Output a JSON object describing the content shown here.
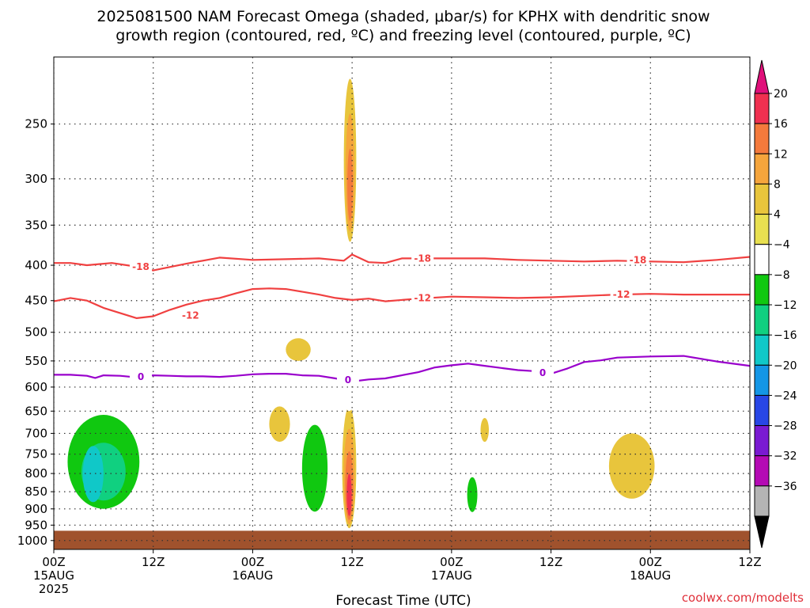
{
  "colors": {
    "ground": "#a0522d",
    "dgz_contour": "#f04040",
    "freezing_contour": "#9900cc",
    "grid": "#888888",
    "credit": "#e0303a"
  },
  "chart_data": {
    "type": "contour",
    "title_lines": [
      "2025081500 NAM Forecast Omega (shaded, μbar/s) for KPHX with dendritic snow",
      "growth region (contoured, red, ºC) and freezing level (contoured, purple, ºC)"
    ],
    "xlabel": "Forecast Time (UTC)",
    "x_range_hours": [
      0,
      84
    ],
    "x_ticks": [
      {
        "hour": 0,
        "label": "00Z",
        "sub": "15AUG",
        "sub2": "2025"
      },
      {
        "hour": 12,
        "label": "12Z",
        "sub": "",
        "sub2": ""
      },
      {
        "hour": 24,
        "label": "00Z",
        "sub": "16AUG",
        "sub2": ""
      },
      {
        "hour": 36,
        "label": "12Z",
        "sub": "",
        "sub2": ""
      },
      {
        "hour": 48,
        "label": "00Z",
        "sub": "17AUG",
        "sub2": ""
      },
      {
        "hour": 60,
        "label": "12Z",
        "sub": "",
        "sub2": ""
      },
      {
        "hour": 72,
        "label": "00Z",
        "sub": "18AUG",
        "sub2": ""
      },
      {
        "hour": 84,
        "label": "12Z",
        "sub": "",
        "sub2": ""
      }
    ],
    "y_axis": {
      "scale": "log-pressure",
      "top_hpa": 200,
      "bottom_hpa": 1030,
      "inverted": true
    },
    "y_ticks": [
      250,
      300,
      350,
      400,
      450,
      500,
      550,
      600,
      650,
      700,
      750,
      800,
      850,
      900,
      950,
      1000
    ],
    "grid": true,
    "colorbar": {
      "labels": [
        "20",
        "16",
        "12",
        "8",
        "4",
        "−4",
        "−8",
        "−12",
        "−16",
        "−20",
        "−24",
        "−28",
        "−32",
        "−36"
      ],
      "colors": [
        "#f03050",
        "#f47a3c",
        "#f5a53c",
        "#e8c53c",
        "#e8e050",
        "#ffffff",
        "#10c810",
        "#10d080",
        "#10c8c8",
        "#1496e6",
        "#2846e6",
        "#7a1ad2",
        "#b40ab4",
        "#b4b4b4"
      ],
      "over_color": "#e0107a",
      "under_color": "#000000"
    },
    "omega_regions": [
      {
        "t": [
          0,
          12
        ],
        "p": [
          600,
          925
        ],
        "range": [
          -16,
          -4
        ]
      },
      {
        "t": [
          3.5,
          6
        ],
        "p": [
          730,
          880
        ],
        "range": [
          -20,
          -16
        ]
      },
      {
        "t": [
          22.5,
          24.5
        ],
        "p": [
          730,
          910
        ],
        "range": [
          -8,
          -4
        ]
      },
      {
        "t": [
          26,
          28.5
        ],
        "p": [
          640,
          720
        ],
        "range": [
          4,
          8
        ]
      },
      {
        "t": [
          28,
          31
        ],
        "p": [
          510,
          550
        ],
        "range": [
          4,
          8
        ]
      },
      {
        "t": [
          29,
          34
        ],
        "p": [
          600,
          960
        ],
        "range": [
          -12,
          -4
        ]
      },
      {
        "t": [
          34.8,
          36.5
        ],
        "p": [
          640,
          960
        ],
        "range": [
          4,
          20
        ]
      },
      {
        "t": [
          34.5,
          36.8
        ],
        "p": [
          435,
          650
        ],
        "range": [
          -8,
          -4
        ]
      },
      {
        "t": [
          35,
          36.5
        ],
        "p": [
          215,
          370
        ],
        "range": [
          4,
          16
        ]
      },
      {
        "t": [
          49.5,
          51.5
        ],
        "p": [
          770,
          930
        ],
        "range": [
          -12,
          -4
        ]
      },
      {
        "t": [
          51.5,
          52.5
        ],
        "p": [
          665,
          720
        ],
        "range": [
          4,
          8
        ]
      },
      {
        "t": [
          55,
          57.5
        ],
        "p": [
          830,
          880
        ],
        "range": [
          -8,
          -4
        ]
      },
      {
        "t": [
          67,
          72.5
        ],
        "p": [
          700,
          870
        ],
        "range": [
          4,
          8
        ]
      }
    ],
    "series": [
      {
        "name": "-18",
        "t": [
          0,
          2,
          4,
          7,
          10,
          12,
          16,
          20,
          24,
          28,
          32,
          35,
          36,
          37,
          38,
          40,
          42,
          44,
          48,
          52,
          56,
          60,
          64,
          68,
          72,
          76,
          80,
          84
        ],
        "p": [
          397,
          397,
          400,
          397,
          402,
          407,
          398,
          390,
          393,
          392,
          391,
          394,
          386,
          391,
          396,
          397,
          391,
          391,
          391,
          391,
          393,
          394,
          395,
          394,
          395,
          396,
          393,
          389
        ]
      },
      {
        "name": "-12",
        "t": [
          0,
          2,
          4,
          6,
          8,
          10,
          12,
          14,
          16,
          18,
          20,
          22,
          24,
          26,
          28,
          30,
          32,
          34,
          36,
          38,
          40,
          44,
          48,
          52,
          56,
          60,
          64,
          68,
          72,
          76,
          80,
          84
        ],
        "p": [
          451,
          446,
          450,
          461,
          469,
          477,
          474,
          464,
          456,
          450,
          446,
          439,
          433,
          432,
          433,
          437,
          441,
          446,
          449,
          447,
          451,
          447,
          444,
          445,
          446,
          445,
          443,
          441,
          440,
          441,
          441,
          441
        ]
      },
      {
        "name": "0",
        "t": [
          0,
          2,
          4,
          5,
          6,
          8,
          10,
          12,
          14,
          16,
          18,
          20,
          22,
          24,
          26,
          28,
          30,
          32,
          34,
          36,
          38,
          40,
          44,
          46,
          48,
          50,
          52,
          54,
          56,
          58,
          60,
          62,
          64,
          66,
          68,
          72,
          76,
          80,
          84
        ],
        "p": [
          576,
          576,
          578,
          582,
          577,
          578,
          581,
          577,
          578,
          579,
          579,
          580,
          578,
          575,
          574,
          574,
          577,
          578,
          583,
          589,
          585,
          583,
          571,
          562,
          558,
          555,
          559,
          563,
          567,
          569,
          574,
          564,
          552,
          549,
          544,
          542,
          541,
          551,
          559
        ]
      }
    ],
    "contour_labels": [
      {
        "text": "-18",
        "t": 10.5,
        "p": 402
      },
      {
        "text": "-18",
        "t": 44.5,
        "p": 391
      },
      {
        "text": "-18",
        "t": 70.5,
        "p": 393
      },
      {
        "text": "-12",
        "t": 16.5,
        "p": 473
      },
      {
        "text": "-12",
        "t": 44.5,
        "p": 446
      },
      {
        "text": "-12",
        "t": 68.5,
        "p": 441
      },
      {
        "text": "0",
        "t": 10.5,
        "p": 580
      },
      {
        "text": "0",
        "t": 35.5,
        "p": 586
      },
      {
        "text": "0",
        "t": 59,
        "p": 572
      }
    ],
    "ground_top_hpa": 968,
    "credit": "coolwx.com/modelts"
  }
}
